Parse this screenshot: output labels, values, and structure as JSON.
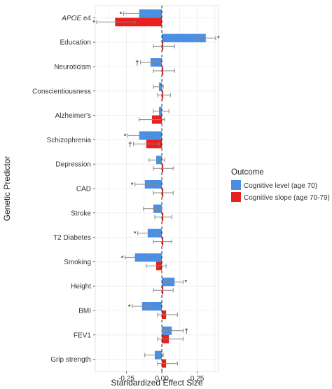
{
  "chart_data": {
    "type": "bar",
    "orientation": "horizontal",
    "xlabel": "Standardized Effect Size",
    "ylabel": "Genetic Predictor",
    "xlim": [
      -0.47,
      0.4
    ],
    "xticks": [
      -0.25,
      0,
      0.25
    ],
    "xtick_labels": [
      "-0.25",
      "0.00",
      "0.25"
    ],
    "grid": true,
    "reference_line": {
      "x": 0,
      "style": "dashed"
    },
    "categories": [
      "APOE e4",
      "Education",
      "Neuroticism",
      "Conscientiousness",
      "Alzheimer's",
      "Schizophrenia",
      "Depression",
      "CAD",
      "Stroke",
      "T2 Diabetes",
      "Smoking",
      "Height",
      "BMI",
      "FEV1",
      "Grip strength"
    ],
    "legend": {
      "title": "Outcome",
      "position": "right"
    },
    "series": [
      {
        "name": "Cognitive level (age 70)",
        "color": "#4a8fe3",
        "values": [
          -0.16,
          0.31,
          -0.08,
          -0.02,
          -0.02,
          -0.16,
          -0.04,
          -0.12,
          -0.06,
          -0.1,
          -0.19,
          0.09,
          -0.14,
          0.07,
          -0.05
        ],
        "ci_low": [
          -0.27,
          0.24,
          -0.15,
          -0.06,
          -0.06,
          -0.24,
          -0.09,
          -0.19,
          -0.13,
          -0.17,
          -0.26,
          0.03,
          -0.21,
          0.0,
          -0.12
        ],
        "ci_high": [
          -0.06,
          0.38,
          -0.01,
          0.01,
          0.05,
          -0.06,
          0.02,
          -0.04,
          0.0,
          -0.03,
          -0.11,
          0.15,
          -0.07,
          0.15,
          0.01
        ],
        "significance": [
          "*",
          "*",
          "†",
          "",
          "",
          "*",
          "",
          "*",
          "",
          "*",
          "*",
          "*",
          "*",
          "†",
          ""
        ]
      },
      {
        "name": "Cognitive slope (age 70-79)",
        "color": "#e8211f",
        "values": [
          -0.33,
          0.01,
          0.01,
          0.01,
          -0.07,
          -0.11,
          0.01,
          0.01,
          0.01,
          0.01,
          -0.04,
          0.01,
          0.03,
          0.05,
          0.03
        ],
        "ci_low": [
          -0.46,
          -0.06,
          -0.06,
          -0.03,
          -0.16,
          -0.2,
          -0.06,
          -0.06,
          -0.05,
          -0.06,
          -0.11,
          -0.06,
          -0.03,
          -0.03,
          -0.03
        ],
        "ci_high": [
          -0.19,
          0.09,
          0.09,
          0.06,
          0.02,
          -0.02,
          0.08,
          0.08,
          0.07,
          0.07,
          0.03,
          0.08,
          0.11,
          0.15,
          0.11
        ],
        "significance": [
          "*",
          "",
          "",
          "",
          "",
          "†",
          "",
          "",
          "",
          "",
          "",
          "",
          "",
          "",
          ""
        ]
      }
    ]
  }
}
